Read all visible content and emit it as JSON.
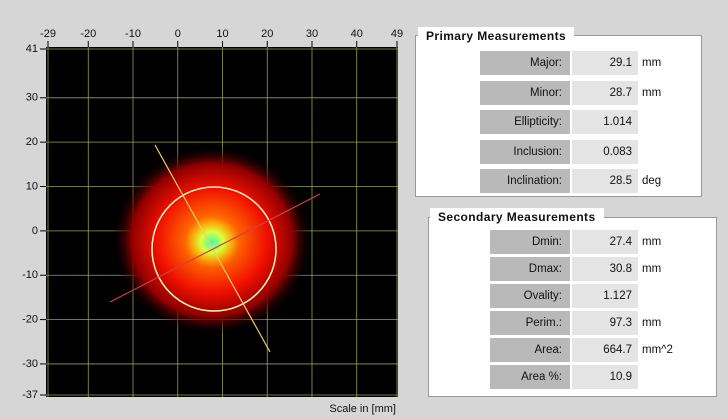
{
  "plot": {
    "xticks": [
      -29,
      -20,
      -10,
      0,
      10,
      20,
      30,
      40,
      49
    ],
    "yticks": [
      41,
      30,
      20,
      10,
      0,
      -10,
      -20,
      -30,
      -37
    ],
    "scale_label": "Scale in [mm]"
  },
  "primary": {
    "title": "Primary Measurements",
    "rows": [
      {
        "label": "Major:",
        "value": 29.1,
        "unit": "mm"
      },
      {
        "label": "Minor:",
        "value": 28.7,
        "unit": "mm"
      },
      {
        "label": "Ellipticity:",
        "value": 1.014
      },
      {
        "label": "Inclusion:",
        "value": 0.083
      },
      {
        "label": "Inclination:",
        "value": 28.5,
        "unit": "deg"
      }
    ]
  },
  "secondary": {
    "title": "Secondary Measurements",
    "rows": [
      {
        "label": "Dmin:",
        "value": 27.4,
        "unit": "mm"
      },
      {
        "label": "Dmax:",
        "value": 30.8,
        "unit": "mm"
      },
      {
        "label": "Ovality:",
        "value": 1.127
      },
      {
        "label": "Perim.:",
        "value": 97.3,
        "unit": "mm"
      },
      {
        "label": "Area:",
        "value": 664.7,
        "unit": "mm^2"
      },
      {
        "label": "Area %:",
        "value": 10.9
      }
    ]
  }
}
